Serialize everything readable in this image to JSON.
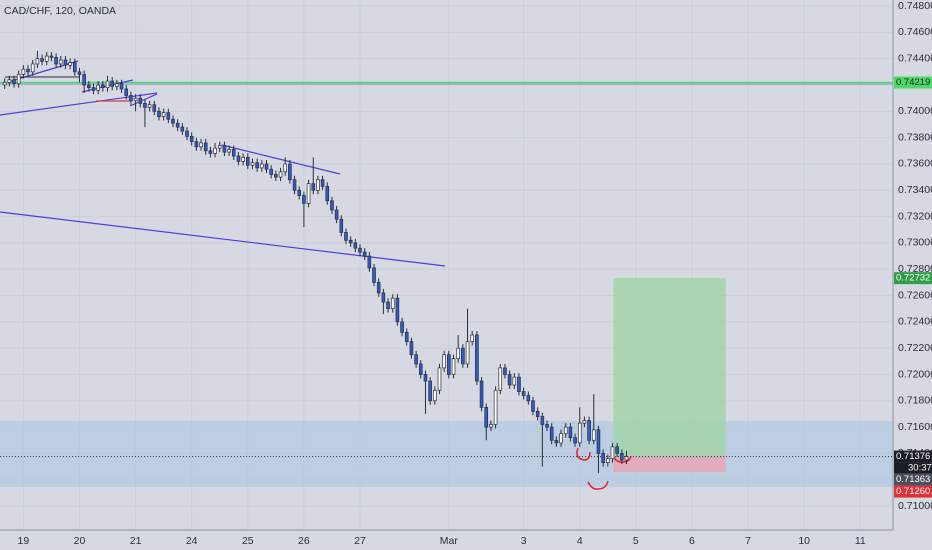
{
  "chart_data": {
    "type": "candlestick",
    "title": "CAD/CHF, 120, OANDA",
    "up_color": "#ffffff",
    "down_color": "#2d5bd2",
    "outline_color": "#2a2e39",
    "grid": true,
    "xlim": [
      -1,
      190
    ],
    "ylim": [
      0.70818,
      0.74846
    ],
    "yticks": [
      {
        "value": 0.748,
        "label": "0.74800"
      },
      {
        "value": 0.746,
        "label": "0.74600"
      },
      {
        "value": 0.744,
        "label": "0.74400"
      },
      {
        "value": 0.742,
        "label": "0.74200"
      },
      {
        "value": 0.74,
        "label": "0.74000"
      },
      {
        "value": 0.738,
        "label": "0.73800"
      },
      {
        "value": 0.736,
        "label": "0.73600"
      },
      {
        "value": 0.734,
        "label": "0.73400"
      },
      {
        "value": 0.732,
        "label": "0.73200"
      },
      {
        "value": 0.73,
        "label": "0.73000"
      },
      {
        "value": 0.728,
        "label": "0.72800"
      },
      {
        "value": 0.726,
        "label": "0.72600"
      },
      {
        "value": 0.724,
        "label": "0.72400"
      },
      {
        "value": 0.722,
        "label": "0.72200"
      },
      {
        "value": 0.72,
        "label": "0.72000"
      },
      {
        "value": 0.718,
        "label": "0.71800"
      },
      {
        "value": 0.716,
        "label": "0.71600"
      },
      {
        "value": 0.714,
        "label": "0.71400"
      },
      {
        "value": 0.712,
        "label": "0.71200"
      },
      {
        "value": 0.71,
        "label": "0.71000"
      }
    ],
    "xticks": [
      {
        "value": 4,
        "label": "19"
      },
      {
        "value": 16,
        "label": "20"
      },
      {
        "value": 28,
        "label": "21"
      },
      {
        "value": 40,
        "label": "24"
      },
      {
        "value": 52,
        "label": "25"
      },
      {
        "value": 64,
        "label": "26"
      },
      {
        "value": 76,
        "label": "27"
      },
      {
        "value": 95,
        "label": "Mar"
      },
      {
        "value": 111,
        "label": "3"
      },
      {
        "value": 123,
        "label": "4"
      },
      {
        "value": 135,
        "label": "5"
      },
      {
        "value": 147,
        "label": "6"
      },
      {
        "value": 159,
        "label": "7"
      },
      {
        "value": 171,
        "label": "10"
      },
      {
        "value": 183,
        "label": "11"
      }
    ],
    "open": [
      0.742,
      0.7422,
      0.7424,
      0.7421,
      0.7428,
      0.7432,
      0.743,
      0.7436,
      0.744,
      0.7438,
      0.7442,
      0.7441,
      0.7436,
      0.7439,
      0.7435,
      0.7437,
      0.743,
      0.7428,
      0.742,
      0.7418,
      0.7416,
      0.742,
      0.7418,
      0.7423,
      0.7419,
      0.7421,
      0.7417,
      0.7412,
      0.7408,
      0.741,
      0.7406,
      0.7403,
      0.7405,
      0.74,
      0.7396,
      0.7399,
      0.7394,
      0.7391,
      0.7388,
      0.7385,
      0.7381,
      0.7377,
      0.7373,
      0.7376,
      0.737,
      0.7368,
      0.7372,
      0.7374,
      0.7369,
      0.7371,
      0.7366,
      0.7362,
      0.7365,
      0.7359,
      0.7361,
      0.7357,
      0.736,
      0.7356,
      0.7352,
      0.735,
      0.7354,
      0.736,
      0.7348,
      0.734,
      0.7336,
      0.733,
      0.7345,
      0.734,
      0.7348,
      0.7343,
      0.7332,
      0.7325,
      0.7318,
      0.7308,
      0.7302,
      0.73,
      0.7296,
      0.7293,
      0.729,
      0.7281,
      0.727,
      0.7262,
      0.7255,
      0.725,
      0.7258,
      0.724,
      0.7232,
      0.7225,
      0.7215,
      0.7208,
      0.72,
      0.7195,
      0.718,
      0.7188,
      0.7205,
      0.7215,
      0.72,
      0.7212,
      0.722,
      0.7208,
      0.7225,
      0.723,
      0.7195,
      0.7175,
      0.716,
      0.7162,
      0.7188,
      0.7205,
      0.72,
      0.7192,
      0.7198,
      0.7187,
      0.7184,
      0.718,
      0.7172,
      0.7168,
      0.7162,
      0.716,
      0.715,
      0.7148,
      0.7155,
      0.716,
      0.7152,
      0.7148,
      0.7163,
      0.7165,
      0.715,
      0.7158,
      0.714,
      0.7133,
      0.7136,
      0.7145,
      0.714,
      0.7135
    ],
    "high": [
      0.7425,
      0.7427,
      0.7427,
      0.7431,
      0.7435,
      0.7435,
      0.7439,
      0.7446,
      0.7443,
      0.7445,
      0.7445,
      0.7444,
      0.7442,
      0.7442,
      0.744,
      0.744,
      0.7433,
      0.7431,
      0.7423,
      0.7421,
      0.7423,
      0.7423,
      0.7427,
      0.7426,
      0.7424,
      0.7424,
      0.742,
      0.7415,
      0.7413,
      0.7413,
      0.7409,
      0.7408,
      0.7408,
      0.7403,
      0.7402,
      0.7402,
      0.7397,
      0.7394,
      0.7391,
      0.7388,
      0.7384,
      0.738,
      0.7379,
      0.7379,
      0.7373,
      0.7376,
      0.7377,
      0.7377,
      0.7374,
      0.7374,
      0.7369,
      0.7368,
      0.7368,
      0.7364,
      0.7364,
      0.7363,
      0.7363,
      0.7359,
      0.7355,
      0.7357,
      0.7365,
      0.7363,
      0.7351,
      0.7343,
      0.7339,
      0.7348,
      0.7365,
      0.7351,
      0.7351,
      0.7346,
      0.7335,
      0.7328,
      0.7321,
      0.7311,
      0.7305,
      0.7303,
      0.7299,
      0.7296,
      0.7293,
      0.7284,
      0.7273,
      0.7265,
      0.7258,
      0.7261,
      0.7261,
      0.7243,
      0.7235,
      0.7228,
      0.7218,
      0.7211,
      0.7203,
      0.7198,
      0.7191,
      0.7208,
      0.7218,
      0.7218,
      0.7215,
      0.723,
      0.7223,
      0.725,
      0.7233,
      0.7233,
      0.7198,
      0.7178,
      0.7165,
      0.7191,
      0.7208,
      0.7208,
      0.7203,
      0.7201,
      0.7201,
      0.719,
      0.7187,
      0.7183,
      0.7175,
      0.7171,
      0.7165,
      0.7163,
      0.7153,
      0.7158,
      0.7163,
      0.7163,
      0.7155,
      0.7175,
      0.7168,
      0.7168,
      0.7185,
      0.7161,
      0.7143,
      0.7139,
      0.7148,
      0.7148,
      0.7143,
      0.7142
    ],
    "low": [
      0.7417,
      0.7419,
      0.7418,
      0.7418,
      0.7425,
      0.7427,
      0.7427,
      0.7433,
      0.7435,
      0.7435,
      0.7438,
      0.7433,
      0.7433,
      0.7432,
      0.7432,
      0.7427,
      0.7422,
      0.7414,
      0.7415,
      0.7413,
      0.7413,
      0.7415,
      0.7415,
      0.7416,
      0.7416,
      0.7414,
      0.7409,
      0.7405,
      0.74,
      0.7403,
      0.7388,
      0.74,
      0.7397,
      0.7393,
      0.7393,
      0.7391,
      0.7388,
      0.7385,
      0.7382,
      0.7378,
      0.7374,
      0.737,
      0.737,
      0.7367,
      0.7365,
      0.7365,
      0.7369,
      0.7366,
      0.7366,
      0.7363,
      0.7359,
      0.7359,
      0.7356,
      0.7356,
      0.7354,
      0.7354,
      0.7353,
      0.7349,
      0.7347,
      0.7347,
      0.7351,
      0.7345,
      0.7337,
      0.7333,
      0.7312,
      0.7327,
      0.7337,
      0.7337,
      0.734,
      0.7329,
      0.7322,
      0.7315,
      0.7305,
      0.7299,
      0.7297,
      0.7293,
      0.729,
      0.7287,
      0.7278,
      0.7267,
      0.7259,
      0.7246,
      0.7247,
      0.7247,
      0.7237,
      0.7229,
      0.7222,
      0.7212,
      0.7205,
      0.7197,
      0.717,
      0.7177,
      0.7177,
      0.7185,
      0.7202,
      0.7197,
      0.7197,
      0.7209,
      0.7205,
      0.7205,
      0.7222,
      0.7192,
      0.7172,
      0.715,
      0.7157,
      0.7159,
      0.7185,
      0.7197,
      0.7189,
      0.7189,
      0.7184,
      0.7181,
      0.7177,
      0.7169,
      0.7165,
      0.713,
      0.7157,
      0.7147,
      0.7145,
      0.7145,
      0.7152,
      0.7149,
      0.7145,
      0.7145,
      0.716,
      0.7147,
      0.7147,
      0.7125,
      0.713,
      0.713,
      0.7133,
      0.7137,
      0.7132,
      0.7132
    ],
    "close": [
      0.7422,
      0.7424,
      0.7421,
      0.7428,
      0.7432,
      0.743,
      0.7436,
      0.744,
      0.7438,
      0.7442,
      0.7441,
      0.7436,
      0.7439,
      0.7435,
      0.7437,
      0.743,
      0.7428,
      0.742,
      0.7418,
      0.7416,
      0.742,
      0.7418,
      0.7423,
      0.7419,
      0.7421,
      0.7417,
      0.7412,
      0.7408,
      0.741,
      0.7406,
      0.7403,
      0.7405,
      0.74,
      0.7396,
      0.7399,
      0.7394,
      0.7391,
      0.7388,
      0.7385,
      0.7381,
      0.7377,
      0.7373,
      0.7376,
      0.737,
      0.7368,
      0.7372,
      0.7374,
      0.7369,
      0.7371,
      0.7366,
      0.7362,
      0.7365,
      0.7359,
      0.7361,
      0.7357,
      0.736,
      0.7356,
      0.7352,
      0.735,
      0.7354,
      0.736,
      0.7348,
      0.734,
      0.7336,
      0.733,
      0.7345,
      0.734,
      0.7348,
      0.7343,
      0.7332,
      0.7325,
      0.7318,
      0.7308,
      0.7302,
      0.73,
      0.7296,
      0.7293,
      0.729,
      0.7281,
      0.727,
      0.7262,
      0.7255,
      0.725,
      0.7258,
      0.724,
      0.7232,
      0.7225,
      0.7215,
      0.7208,
      0.72,
      0.7195,
      0.718,
      0.7188,
      0.7205,
      0.7215,
      0.72,
      0.7212,
      0.722,
      0.7208,
      0.7225,
      0.723,
      0.7195,
      0.7175,
      0.716,
      0.7162,
      0.7188,
      0.7205,
      0.72,
      0.7192,
      0.7198,
      0.7187,
      0.7184,
      0.718,
      0.7172,
      0.7168,
      0.7162,
      0.716,
      0.715,
      0.7148,
      0.7155,
      0.716,
      0.7152,
      0.7148,
      0.7163,
      0.7165,
      0.715,
      0.7158,
      0.714,
      0.7133,
      0.7136,
      0.7145,
      0.714,
      0.7135,
      0.71376
    ],
    "level": {
      "value": 0.74219,
      "label": "0.74219",
      "color": "#4cd964"
    },
    "zone": [
      0.71145,
      0.71646
    ],
    "position": {
      "x": [
        130.2,
        154.2
      ],
      "entry": 0.71376,
      "target": {
        "value": 0.72732,
        "label": "0.72732"
      },
      "stop": {
        "value": 0.7126,
        "label": "0.71260"
      }
    },
    "last_price": {
      "value": 0.71376,
      "label": "0.71376"
    },
    "countdown": "30:37",
    "bid": {
      "value": 0.71363,
      "label": "0.71363"
    }
  }
}
